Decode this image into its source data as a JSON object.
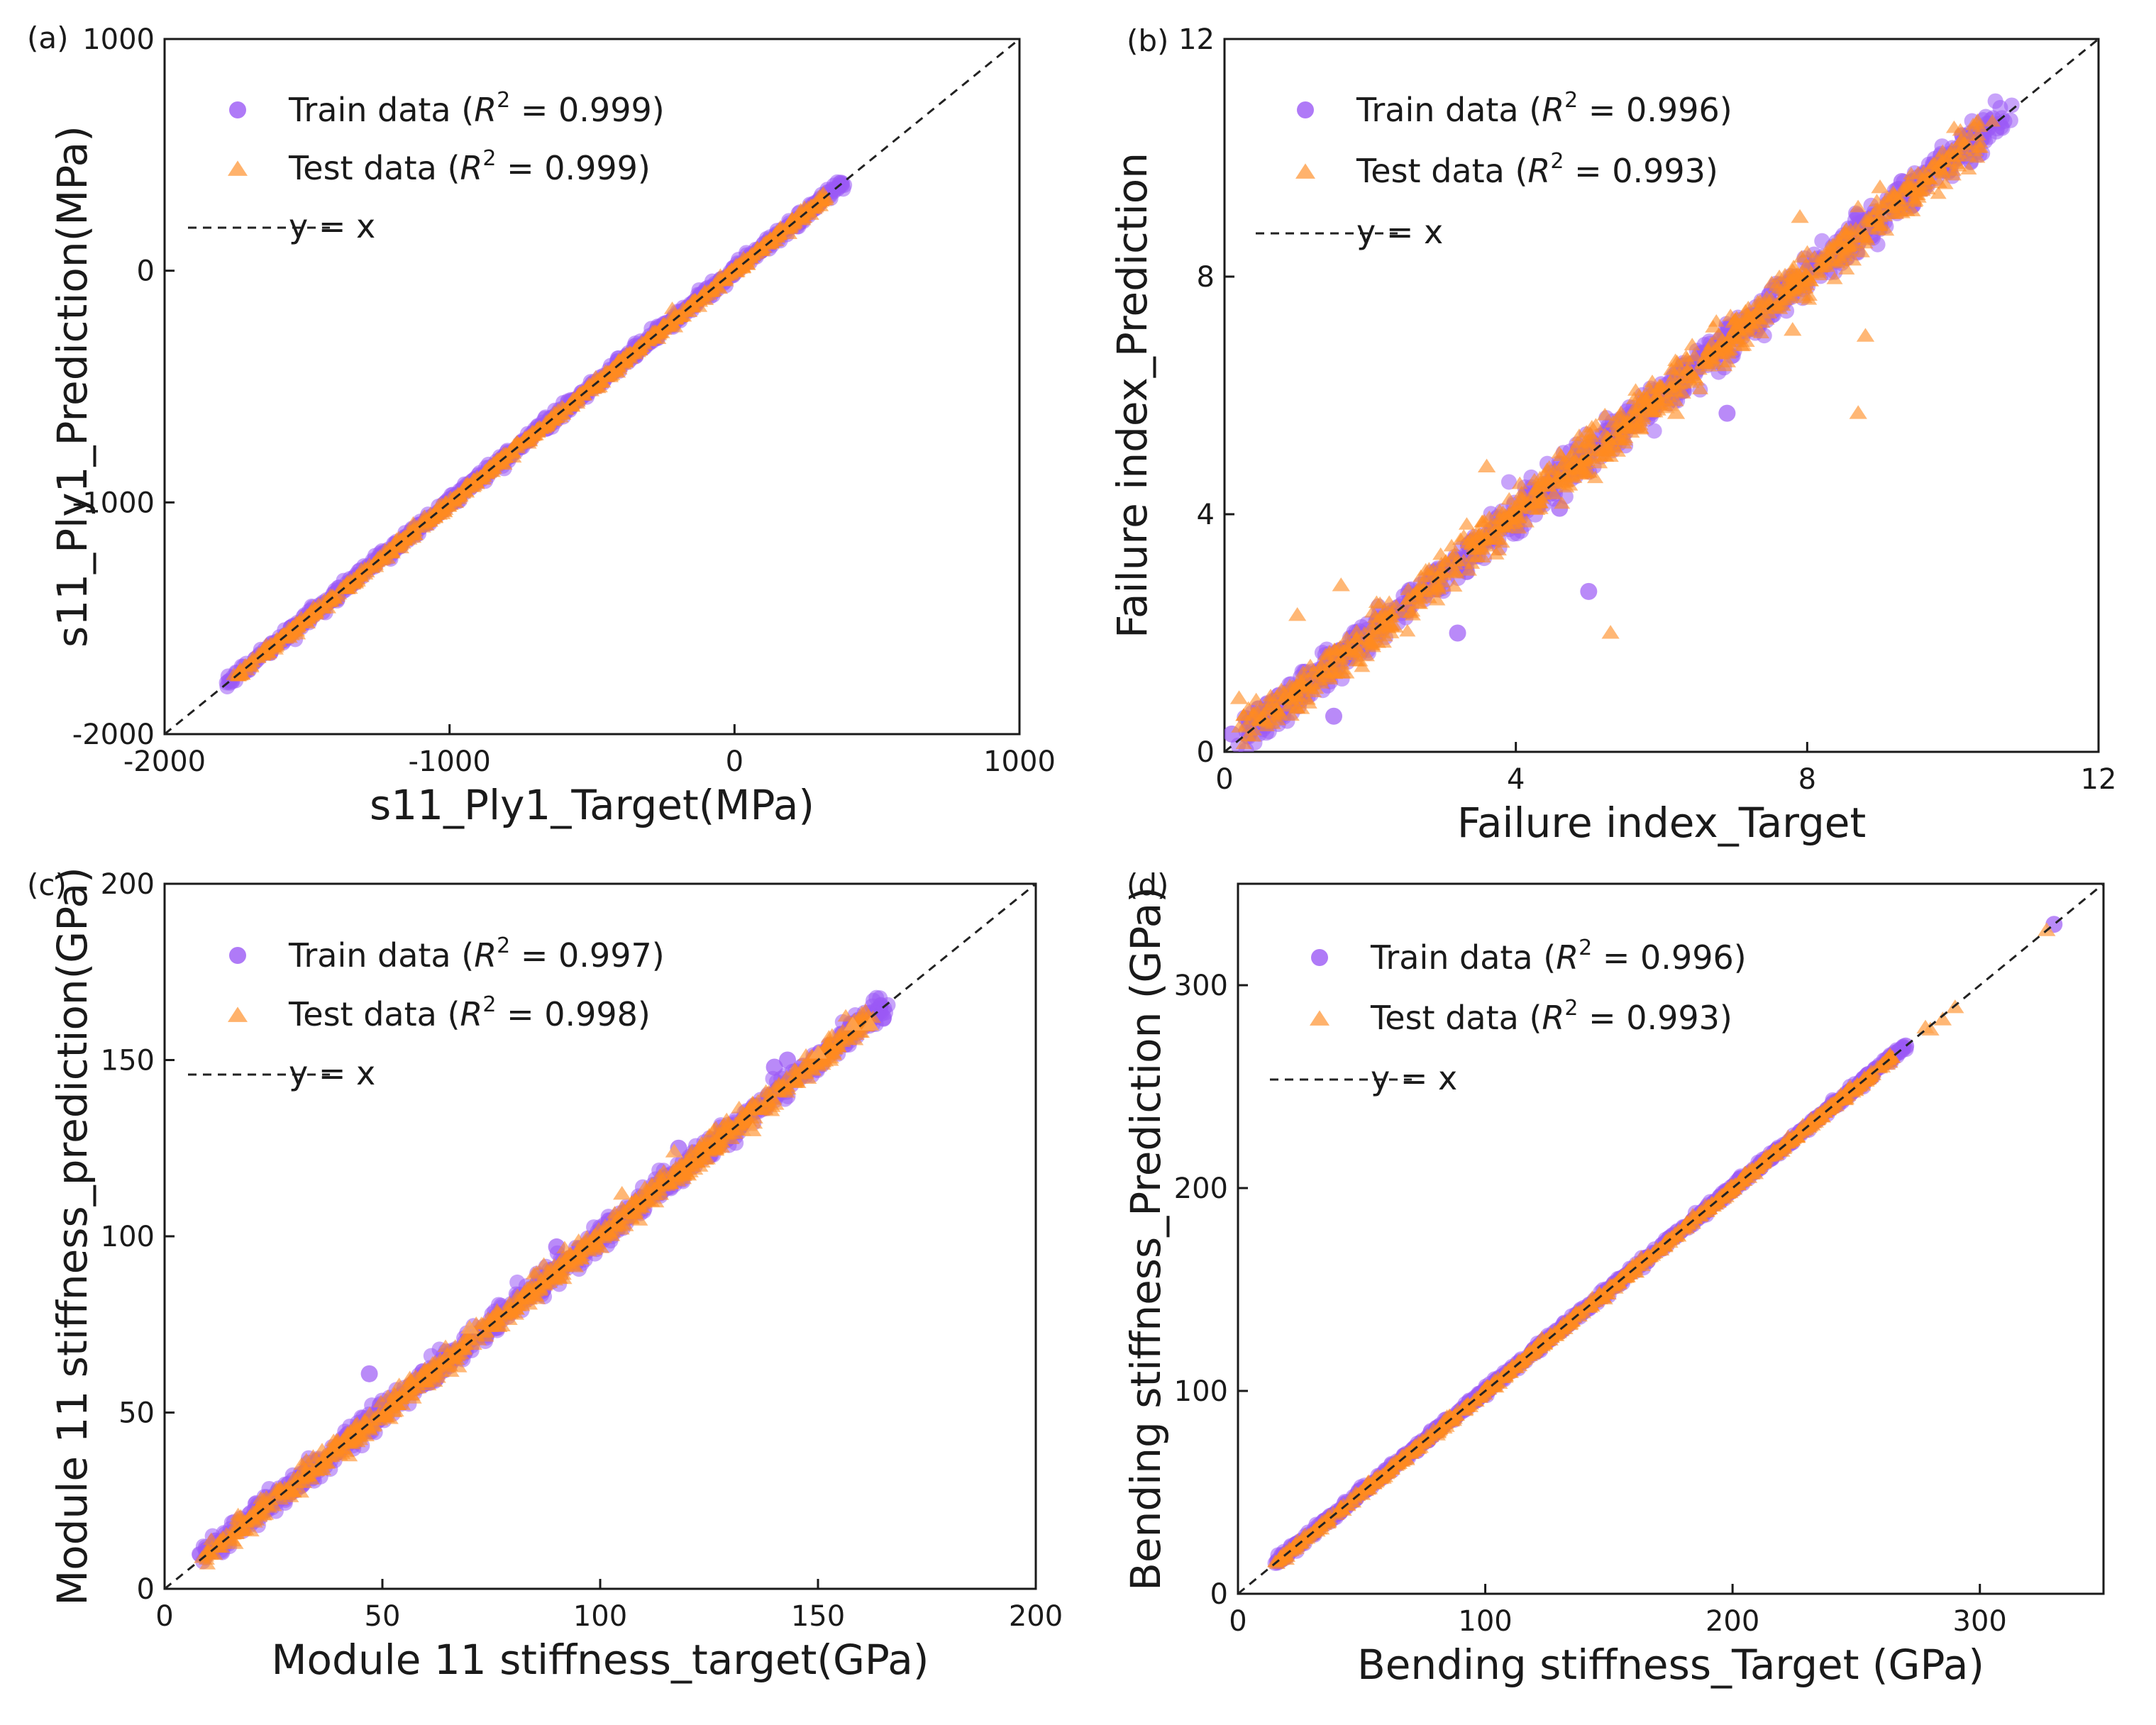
{
  "colors": {
    "train": "#9b59f5",
    "test": "#ffa552",
    "test_dense": "#ff8a1f",
    "train_dense": "#8a3ff2",
    "frame": "#1a1a1a",
    "identity_line": "#222222"
  },
  "chart_data": [
    {
      "type": "scatter",
      "panel_label": "(a)",
      "xlabel": "s11_Ply1_Target(MPa)",
      "ylabel": "s11_Ply1_Prediction(MPa)",
      "xlim": [
        -2000,
        1000
      ],
      "ylim": [
        -2000,
        1000
      ],
      "xticks": [
        -2000,
        -1000,
        0,
        1000
      ],
      "yticks": [
        -2000,
        -1000,
        0,
        1000
      ],
      "legend_position": "top-left",
      "legend": [
        {
          "marker": "circle",
          "prefix": "Train data (",
          "r": "R",
          "sup": "2",
          "suffix": " = 0.999)"
        },
        {
          "marker": "triangle",
          "prefix": "Test data (",
          "r": "R",
          "sup": "2",
          "suffix": " = 0.999)"
        },
        {
          "marker": "dashed-line",
          "label": "y = x"
        }
      ],
      "series": [
        {
          "name": "Train data",
          "r2": 0.999,
          "x_range": [
            -1780,
            380
          ],
          "noise": 12
        },
        {
          "name": "Test data",
          "r2": 0.999,
          "x_range": [
            -1760,
            320
          ],
          "noise": 10
        }
      ]
    },
    {
      "type": "scatter",
      "panel_label": "(b)",
      "xlabel": "Failure index_Target",
      "ylabel": "Failure index_Prediction",
      "xlim": [
        0,
        12
      ],
      "ylim": [
        0,
        12
      ],
      "xticks": [
        0,
        4,
        8,
        12
      ],
      "yticks": [
        0,
        4,
        8,
        12
      ],
      "legend_position": "top-left",
      "legend": [
        {
          "marker": "circle",
          "prefix": "Train data (",
          "r": "R",
          "sup": "2",
          "suffix": " = 0.996)"
        },
        {
          "marker": "triangle",
          "prefix": "Test data (",
          "r": "R",
          "sup": "2",
          "suffix": " = 0.993)"
        },
        {
          "marker": "dashed-line",
          "label": "y = x"
        }
      ],
      "series": [
        {
          "name": "Train data",
          "r2": 0.996,
          "x_range": [
            0.2,
            10.7
          ],
          "noise": 0.14,
          "outliers": [
            [
              0.1,
              0.3
            ],
            [
              5.0,
              2.7
            ],
            [
              6.9,
              5.7
            ],
            [
              3.2,
              2.0
            ],
            [
              4.6,
              4.1
            ],
            [
              1.5,
              0.6
            ],
            [
              6.3,
              6.5
            ],
            [
              9.3,
              9.6
            ]
          ]
        },
        {
          "name": "Test data",
          "r2": 0.993,
          "x_range": [
            0.3,
            10.4
          ],
          "noise": 0.16,
          "outliers": [
            [
              5.3,
              2.0
            ],
            [
              8.7,
              5.7
            ],
            [
              8.8,
              7.0
            ],
            [
              3.6,
              4.8
            ],
            [
              1.0,
              2.3
            ],
            [
              0.2,
              0.9
            ],
            [
              1.6,
              2.8
            ],
            [
              7.8,
              7.1
            ],
            [
              9.0,
              9.5
            ],
            [
              7.9,
              9.0
            ],
            [
              6.2,
              5.7
            ]
          ]
        }
      ]
    },
    {
      "type": "scatter",
      "panel_label": "(c)",
      "xlabel": "Module 11 stiffness_target(GPa)",
      "ylabel": "Module 11 stiffness_prediction(GPa)",
      "xlim": [
        0,
        200
      ],
      "ylim": [
        0,
        200
      ],
      "xticks": [
        0,
        50,
        100,
        150,
        200
      ],
      "yticks": [
        0,
        50,
        100,
        150,
        200
      ],
      "legend_position": "top-left",
      "legend": [
        {
          "marker": "circle",
          "prefix": "Train data (",
          "r": "R",
          "sup": "2",
          "suffix": " = 0.997)"
        },
        {
          "marker": "triangle",
          "prefix": "Test data (",
          "r": "R",
          "sup": "2",
          "suffix": " = 0.998)"
        },
        {
          "marker": "dashed-line",
          "label": "y = x"
        }
      ],
      "series": [
        {
          "name": "Train data",
          "r2": 0.997,
          "x_range": [
            8,
            165
          ],
          "noise": 1.6,
          "outliers": [
            [
              47,
              61
            ],
            [
              140,
              148
            ],
            [
              143,
              150
            ],
            [
              118,
              125
            ],
            [
              90,
              97
            ],
            [
              165,
              162
            ],
            [
              160,
              160
            ]
          ]
        },
        {
          "name": "Test data",
          "r2": 0.998,
          "x_range": [
            9,
            162
          ],
          "noise": 1.5,
          "outliers": [
            [
              105,
              112
            ],
            [
              158,
              160
            ],
            [
              162,
              160
            ],
            [
              150,
              152
            ],
            [
              117,
              124
            ],
            [
              135,
              130
            ],
            [
              70,
              74
            ]
          ]
        }
      ]
    },
    {
      "type": "scatter",
      "panel_label": "(d)",
      "xlabel": "Bending stiffness_Target (GPa)",
      "ylabel": "Bending stiffness_Prediction (GPa)",
      "xlim": [
        0,
        350
      ],
      "ylim": [
        0,
        350
      ],
      "xticks": [
        0,
        100,
        200,
        300
      ],
      "yticks": [
        0,
        100,
        200,
        300
      ],
      "legend_position": "top-left",
      "legend": [
        {
          "marker": "circle",
          "prefix": "Train data (",
          "r": "R",
          "sup": "2",
          "suffix": " = 0.996)"
        },
        {
          "marker": "triangle",
          "prefix": "Test data (",
          "r": "R",
          "sup": "2",
          "suffix": " = 0.993)"
        },
        {
          "marker": "dashed-line",
          "label": "y = x"
        }
      ],
      "series": [
        {
          "name": "Train data",
          "r2": 0.996,
          "x_range": [
            15,
            270
          ],
          "noise": 0.9,
          "outliers": [
            [
              330,
              330
            ],
            [
              270,
              270
            ],
            [
              255,
              256
            ]
          ]
        },
        {
          "name": "Test data",
          "r2": 0.993,
          "x_range": [
            15,
            265
          ],
          "noise": 0.9,
          "outliers": [
            [
              327,
              327
            ],
            [
              290,
              289
            ],
            [
              285,
              283
            ],
            [
              280,
              278
            ],
            [
              278,
              279
            ]
          ]
        }
      ]
    }
  ]
}
